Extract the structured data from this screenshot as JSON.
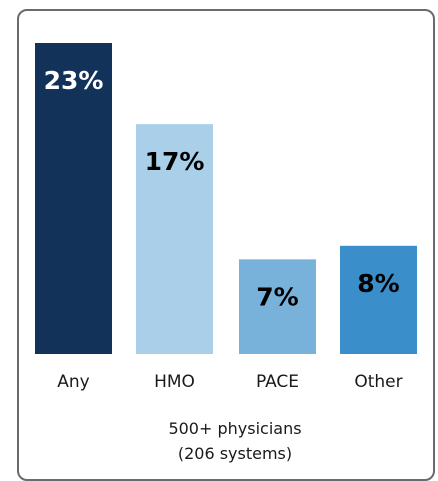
{
  "chart_data": {
    "type": "bar",
    "categories": [
      "Any",
      "HMO",
      "PACE",
      "Other"
    ],
    "values": [
      23,
      17,
      7,
      8
    ],
    "value_labels": [
      "23%",
      "17%",
      "7%",
      "8%"
    ],
    "colors": [
      "#12325a",
      "#a9cfe9",
      "#78b1da",
      "#3a8fca"
    ],
    "label_colors": [
      "#ffffff",
      "#000000",
      "#000000",
      "#000000"
    ],
    "ylim": [
      0,
      23
    ],
    "footnote": [
      "500+ physicians",
      "(206 systems)"
    ]
  }
}
